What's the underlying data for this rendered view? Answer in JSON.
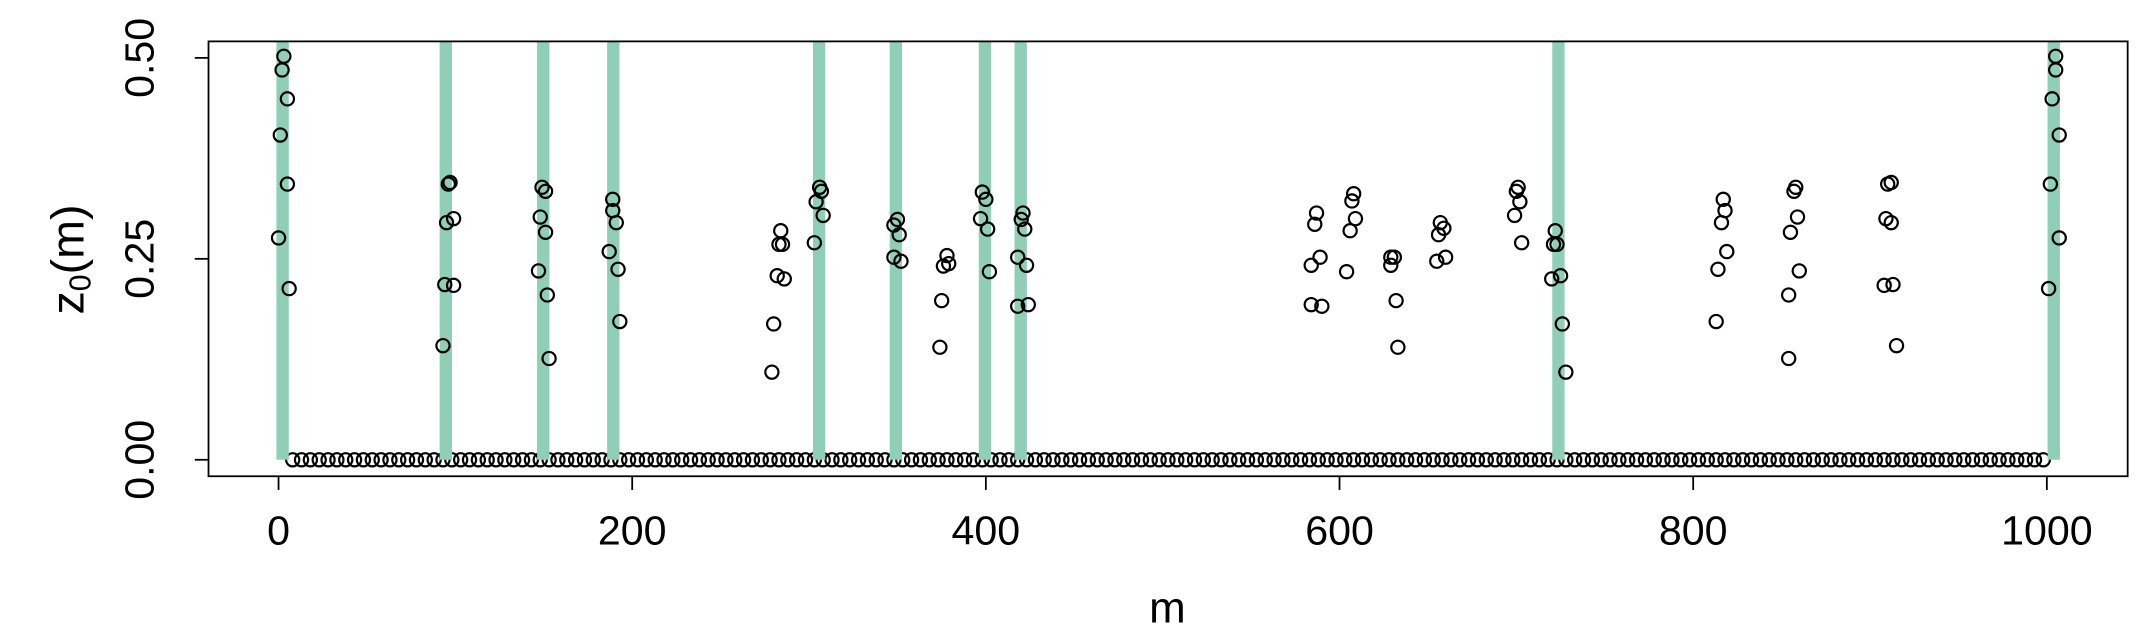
{
  "chart_data": {
    "type": "scatter",
    "xlabel": "m",
    "ylabel_parts": [
      "z",
      "0",
      "(m)"
    ],
    "xlim": [
      -39.6,
      1045.7
    ],
    "ylim": [
      -0.0205,
      0.5205
    ],
    "xticks": [
      0,
      200,
      400,
      600,
      800,
      1000
    ],
    "yticks": [
      {
        "value": 0,
        "label": "0.00"
      },
      {
        "value": 0.25,
        "label": "0.25"
      },
      {
        "value": 0.5,
        "label": "0.50"
      }
    ],
    "vlines": {
      "color": "#8fcfb8",
      "x": [
        2.3,
        94.6,
        149.7,
        189.3,
        305.7,
        349.1,
        399.5,
        419.7,
        723.8,
        1003.9
      ]
    },
    "series": [
      {
        "color": "#000000",
        "x": [
          8,
          13,
          18,
          23,
          28,
          33,
          38,
          43,
          48,
          53,
          58,
          63,
          68,
          73,
          78,
          83,
          88,
          93,
          98,
          103,
          108,
          113,
          118,
          123,
          128,
          133,
          138,
          143,
          148,
          153,
          158,
          163,
          168,
          173,
          178,
          183,
          188,
          193,
          198,
          203,
          208,
          213,
          218,
          223,
          228,
          233,
          238,
          243,
          248,
          253,
          258,
          263,
          268,
          273,
          278,
          283,
          288,
          293,
          298,
          303,
          308,
          313,
          318,
          323,
          328,
          333,
          338,
          343,
          348,
          353,
          358,
          363,
          368,
          373,
          378,
          383,
          388,
          393,
          398,
          403,
          408,
          413,
          418,
          423,
          428,
          433,
          438,
          443,
          448,
          453,
          458,
          463,
          468,
          473,
          478,
          483,
          488,
          493,
          498,
          503,
          508,
          513,
          518,
          523,
          528,
          533,
          538,
          543,
          548,
          553,
          558,
          563,
          568,
          573,
          578,
          583,
          588,
          593,
          598,
          603,
          608,
          613,
          618,
          623,
          628,
          633,
          638,
          643,
          648,
          653,
          658,
          663,
          668,
          673,
          678,
          683,
          688,
          693,
          698,
          703,
          708,
          713,
          718,
          723,
          728,
          733,
          738,
          743,
          748,
          753,
          758,
          763,
          768,
          773,
          778,
          783,
          788,
          793,
          798,
          803,
          808,
          813,
          818,
          823,
          828,
          833,
          838,
          843,
          848,
          853,
          858,
          863,
          868,
          873,
          878,
          883,
          888,
          893,
          898,
          903,
          908,
          913,
          918,
          923,
          928,
          933,
          938,
          943,
          948,
          953,
          958,
          963,
          968,
          973,
          978,
          983,
          988,
          993,
          998
        ],
        "values": [
          0,
          0,
          0,
          0,
          0,
          0,
          0,
          0,
          0,
          0,
          0,
          0,
          0,
          0,
          0,
          0,
          0,
          0,
          0,
          0,
          0,
          0,
          0,
          0,
          0,
          0,
          0,
          0,
          0,
          0,
          0,
          0,
          0,
          0,
          0,
          0,
          0,
          0,
          0,
          0,
          0,
          0,
          0,
          0,
          0,
          0,
          0,
          0,
          0,
          0,
          0,
          0,
          0,
          0,
          0,
          0,
          0,
          0,
          0,
          0,
          0,
          0,
          0,
          0,
          0,
          0,
          0,
          0,
          0,
          0,
          0,
          0,
          0,
          0,
          0,
          0,
          0,
          0,
          0,
          0,
          0,
          0,
          0,
          0,
          0,
          0,
          0,
          0,
          0,
          0,
          0,
          0,
          0,
          0,
          0,
          0,
          0,
          0,
          0,
          0,
          0,
          0,
          0,
          0,
          0,
          0,
          0,
          0,
          0,
          0,
          0,
          0,
          0,
          0,
          0,
          0,
          0,
          0,
          0,
          0,
          0,
          0,
          0,
          0,
          0,
          0,
          0,
          0,
          0,
          0,
          0,
          0,
          0,
          0,
          0,
          0,
          0,
          0,
          0,
          0,
          0,
          0,
          0,
          0,
          0,
          0,
          0,
          0,
          0,
          0,
          0,
          0,
          0,
          0,
          0,
          0,
          0,
          0,
          0,
          0,
          0,
          0,
          0,
          0,
          0,
          0,
          0,
          0,
          0,
          0,
          0,
          0,
          0,
          0,
          0,
          0,
          0,
          0,
          0,
          0,
          0,
          0,
          0,
          0,
          0,
          0,
          0,
          0,
          0,
          0,
          0,
          0,
          0,
          0,
          0,
          0,
          0,
          0,
          0
        ]
      },
      {
        "color": "#000000",
        "x": [
          0,
          1,
          2,
          3,
          5,
          5,
          6,
          93,
          94,
          95,
          96,
          97,
          99,
          99,
          147,
          148,
          149,
          151,
          151,
          152,
          153,
          187,
          189,
          189,
          191,
          192,
          193,
          279,
          280,
          282,
          283,
          284,
          285,
          286,
          303,
          304,
          306,
          307,
          308,
          348,
          348,
          350,
          351,
          352,
          374,
          375,
          376,
          378,
          379,
          397,
          398,
          400,
          401,
          402,
          418,
          418,
          420,
          421,
          422,
          423,
          424,
          584,
          584,
          586,
          587,
          589,
          590,
          604,
          606,
          607,
          608,
          609,
          629,
          629,
          631,
          632,
          633,
          655,
          656,
          657,
          659,
          660,
          699,
          700,
          701,
          702,
          703,
          720,
          721,
          722,
          723,
          725,
          726,
          728,
          813,
          814,
          816,
          817,
          818,
          819,
          854,
          854,
          855,
          857,
          858,
          859,
          860,
          908,
          909,
          910,
          912,
          912,
          913,
          915,
          1001,
          1002,
          1003,
          1005,
          1005,
          1007,
          1007
        ],
        "values": [
          0.276,
          0.404,
          0.485,
          0.502,
          0.449,
          0.343,
          0.213,
          0.142,
          0.218,
          0.295,
          0.343,
          0.345,
          0.3,
          0.217,
          0.235,
          0.302,
          0.339,
          0.334,
          0.283,
          0.205,
          0.126,
          0.259,
          0.31,
          0.324,
          0.295,
          0.237,
          0.172,
          0.109,
          0.169,
          0.229,
          0.268,
          0.285,
          0.268,
          0.225,
          0.27,
          0.321,
          0.339,
          0.334,
          0.304,
          0.252,
          0.292,
          0.299,
          0.28,
          0.247,
          0.14,
          0.198,
          0.241,
          0.254,
          0.244,
          0.3,
          0.333,
          0.324,
          0.287,
          0.234,
          0.191,
          0.252,
          0.299,
          0.307,
          0.287,
          0.242,
          0.193,
          0.193,
          0.242,
          0.293,
          0.307,
          0.252,
          0.191,
          0.234,
          0.285,
          0.322,
          0.331,
          0.3,
          0.252,
          0.242,
          0.252,
          0.198,
          0.14,
          0.247,
          0.28,
          0.295,
          0.288,
          0.252,
          0.304,
          0.334,
          0.339,
          0.321,
          0.27,
          0.225,
          0.268,
          0.285,
          0.268,
          0.229,
          0.169,
          0.109,
          0.172,
          0.237,
          0.295,
          0.324,
          0.31,
          0.259,
          0.126,
          0.205,
          0.283,
          0.334,
          0.339,
          0.302,
          0.235,
          0.217,
          0.3,
          0.343,
          0.345,
          0.295,
          0.218,
          0.142,
          0.213,
          0.343,
          0.449,
          0.502,
          0.485,
          0.404,
          0.276
        ]
      }
    ]
  }
}
